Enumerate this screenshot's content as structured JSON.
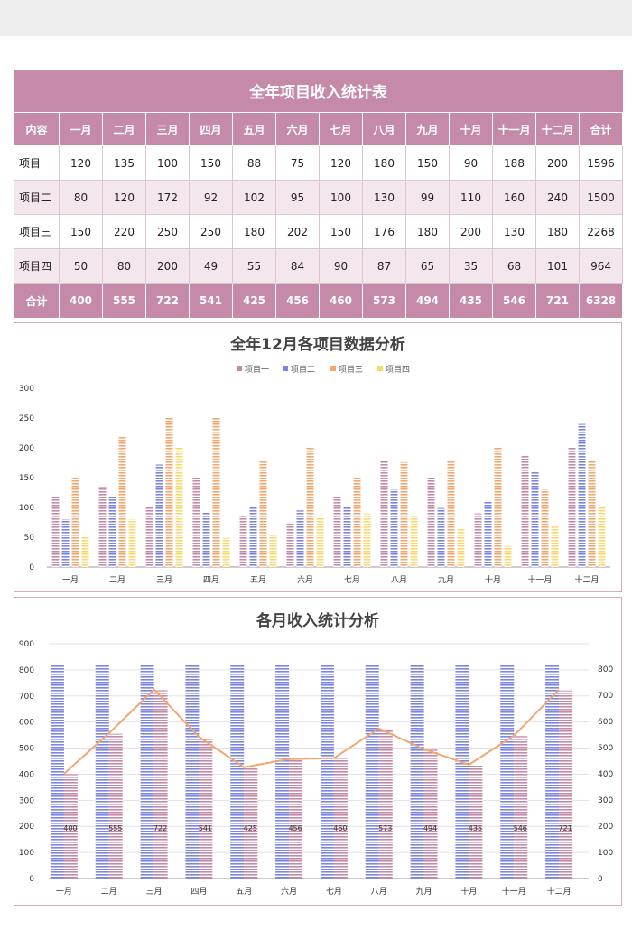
{
  "table": {
    "title": "全年项目收入统计表",
    "headers": [
      "内容",
      "一月",
      "二月",
      "三月",
      "四月",
      "五月",
      "六月",
      "七月",
      "八月",
      "九月",
      "十月",
      "十一月",
      "十二月",
      "合计"
    ],
    "rows": [
      [
        "项目一",
        "120",
        "135",
        "100",
        "150",
        "88",
        "75",
        "120",
        "180",
        "150",
        "90",
        "188",
        "200",
        "1596"
      ],
      [
        "项目二",
        "80",
        "120",
        "172",
        "92",
        "102",
        "95",
        "100",
        "130",
        "99",
        "110",
        "160",
        "240",
        "1500"
      ],
      [
        "项目三",
        "150",
        "220",
        "250",
        "250",
        "180",
        "202",
        "150",
        "176",
        "180",
        "200",
        "130",
        "180",
        "2268"
      ],
      [
        "项目四",
        "50",
        "80",
        "200",
        "49",
        "55",
        "84",
        "90",
        "87",
        "65",
        "35",
        "68",
        "101",
        "964"
      ]
    ],
    "total_row": [
      "合计",
      "400",
      "555",
      "722",
      "541",
      "425",
      "456",
      "460",
      "573",
      "494",
      "435",
      "546",
      "721",
      "6328"
    ]
  },
  "chart_data": [
    {
      "type": "bar",
      "title": "全年12月各项目数据分析",
      "categories": [
        "一月",
        "二月",
        "三月",
        "四月",
        "五月",
        "六月",
        "七月",
        "八月",
        "九月",
        "十月",
        "十一月",
        "十二月"
      ],
      "series": [
        {
          "name": "项目一",
          "color": "#c48aa8",
          "values": [
            120,
            135,
            100,
            150,
            88,
            75,
            120,
            180,
            150,
            90,
            188,
            200
          ]
        },
        {
          "name": "项目二",
          "color": "#7b86e0",
          "values": [
            80,
            120,
            172,
            92,
            102,
            95,
            100,
            130,
            99,
            110,
            160,
            240
          ]
        },
        {
          "name": "项目三",
          "color": "#f3a66d",
          "values": [
            150,
            220,
            250,
            250,
            180,
            202,
            150,
            176,
            180,
            200,
            130,
            180
          ]
        },
        {
          "name": "项目四",
          "color": "#fbd86a",
          "values": [
            50,
            80,
            200,
            49,
            55,
            84,
            90,
            87,
            65,
            35,
            68,
            101
          ]
        }
      ],
      "ylim": [
        0,
        300
      ],
      "yticks": [
        0,
        50,
        100,
        150,
        200,
        250,
        300
      ],
      "legend": "top",
      "grid": false
    },
    {
      "type": "bar",
      "title": "各月收入统计分析",
      "categories": [
        "一月",
        "二月",
        "三月",
        "四月",
        "五月",
        "六月",
        "七月",
        "八月",
        "九月",
        "十月",
        "十一月",
        "十二月"
      ],
      "series": [
        {
          "kind": "bar",
          "axis": "left",
          "color": "#7b86e0",
          "values": [
            820,
            820,
            820,
            820,
            820,
            820,
            820,
            820,
            820,
            820,
            820,
            820
          ]
        },
        {
          "kind": "bar",
          "axis": "left",
          "color": "#c48aa8",
          "values": [
            400,
            555,
            722,
            541,
            425,
            456,
            460,
            573,
            494,
            435,
            546,
            721
          ],
          "labels": [
            "400",
            "555",
            "722",
            "541",
            "425",
            "456",
            "460",
            "573",
            "494",
            "435",
            "546",
            "721"
          ]
        },
        {
          "kind": "line",
          "axis": "right",
          "color": "#f3a66d",
          "values": [
            400,
            555,
            722,
            541,
            425,
            456,
            460,
            573,
            494,
            435,
            546,
            721
          ]
        }
      ],
      "ylim": [
        0,
        900
      ],
      "yticks": [
        0,
        100,
        200,
        300,
        400,
        500,
        600,
        700,
        800,
        900
      ],
      "y2lim": [
        0,
        800
      ],
      "y2ticks": [
        0,
        100,
        200,
        300,
        400,
        500,
        600,
        700,
        800
      ],
      "grid": true
    }
  ]
}
